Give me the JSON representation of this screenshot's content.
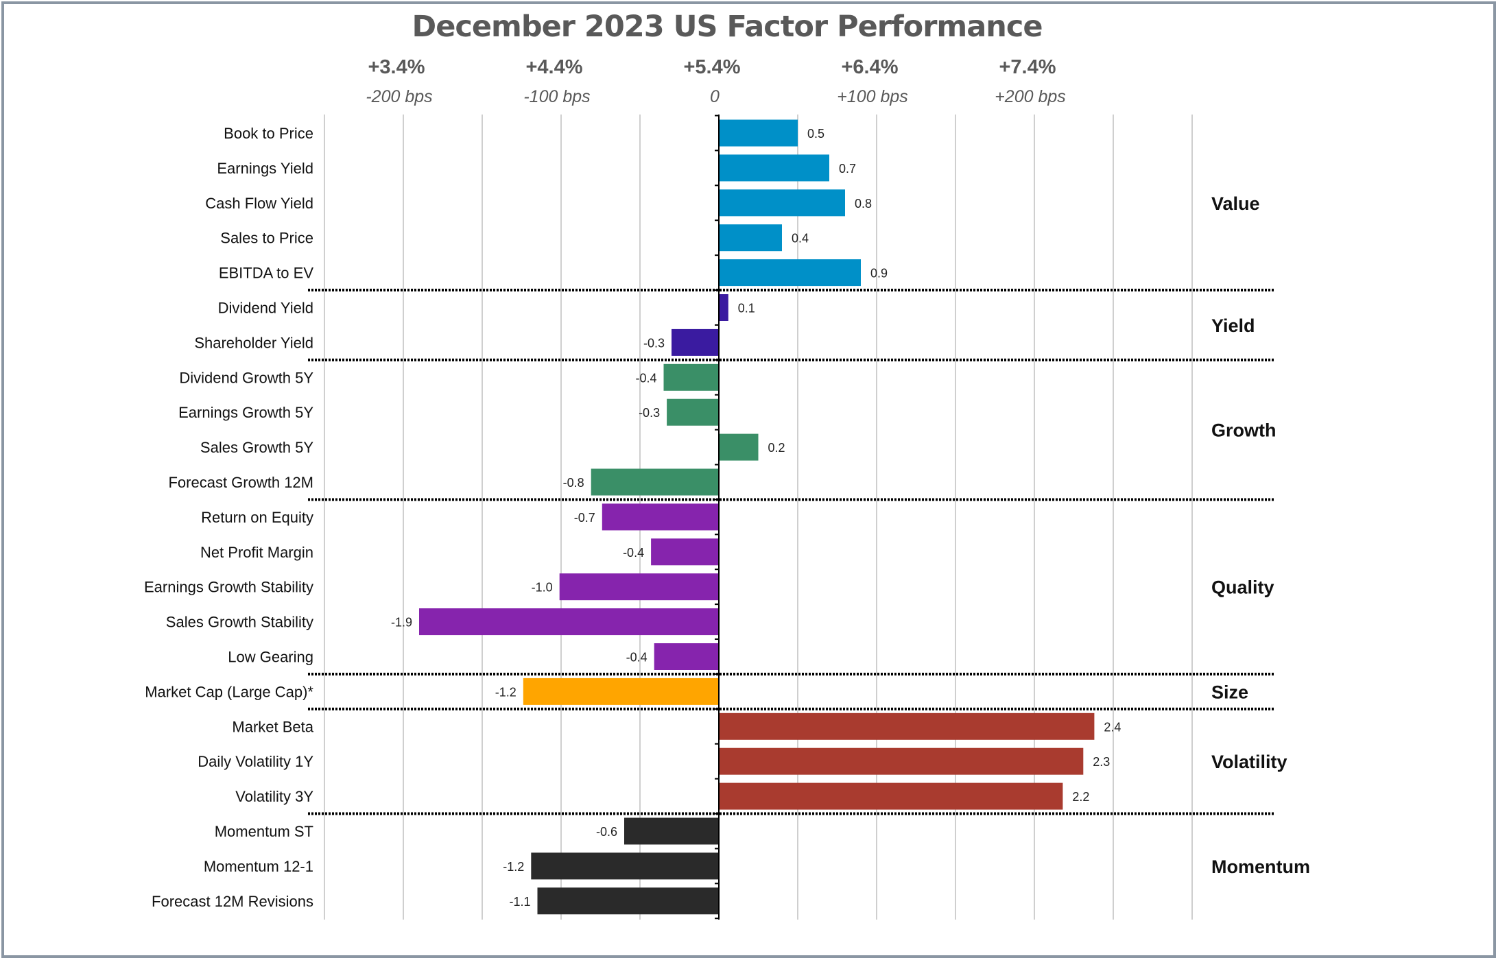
{
  "chart_data": {
    "type": "bar",
    "orientation": "horizontal",
    "title": "December 2023 US Factor Performance",
    "top_axis": [
      {
        "value": -2,
        "pct": "+3.4%",
        "bps": "-200 bps"
      },
      {
        "value": -1,
        "pct": "+4.4%",
        "bps": "-100 bps"
      },
      {
        "value": 0,
        "pct": "+5.4%",
        "bps": "0"
      },
      {
        "value": 1,
        "pct": "+6.4%",
        "bps": "+100 bps"
      },
      {
        "value": 2,
        "pct": "+7.4%",
        "bps": "+200 bps"
      }
    ],
    "xlim": [
      -2.5,
      3.0
    ],
    "grid_step": 0.5,
    "grid": true,
    "groups": [
      {
        "name": "Value",
        "color": "#0090c8",
        "items": [
          {
            "label": "Book to Price",
            "value": 0.5,
            "text": "0.5"
          },
          {
            "label": "Earnings Yield",
            "value": 0.7,
            "text": "0.7"
          },
          {
            "label": "Cash Flow Yield",
            "value": 0.8,
            "text": "0.8"
          },
          {
            "label": "Sales to Price",
            "value": 0.4,
            "text": "0.4"
          },
          {
            "label": "EBITDA to EV",
            "value": 0.9,
            "text": "0.9"
          }
        ]
      },
      {
        "name": "Yield",
        "color": "#3a1ba0",
        "items": [
          {
            "label": "Dividend Yield",
            "value": 0.06,
            "text": "0.1"
          },
          {
            "label": "Shareholder Yield",
            "value": -0.3,
            "text": "-0.3"
          }
        ]
      },
      {
        "name": "Growth",
        "color": "#3a8f67",
        "items": [
          {
            "label": "Dividend Growth 5Y",
            "value": -0.35,
            "text": "-0.4"
          },
          {
            "label": "Earnings Growth 5Y",
            "value": -0.33,
            "text": "-0.3"
          },
          {
            "label": "Sales Growth 5Y",
            "value": 0.25,
            "text": "0.2"
          },
          {
            "label": "Forecast Growth 12M",
            "value": -0.81,
            "text": "-0.8"
          }
        ]
      },
      {
        "name": "Quality",
        "color": "#8624ad",
        "items": [
          {
            "label": "Return on Equity",
            "value": -0.74,
            "text": "-0.7"
          },
          {
            "label": "Net Profit Margin",
            "value": -0.43,
            "text": "-0.4"
          },
          {
            "label": "Earnings Growth Stability",
            "value": -1.01,
            "text": "-1.0"
          },
          {
            "label": "Sales Growth Stability",
            "value": -1.9,
            "text": "-1.9"
          },
          {
            "label": "Low Gearing",
            "value": -0.41,
            "text": "-0.4"
          }
        ]
      },
      {
        "name": "Size",
        "color": "#ffa500",
        "items": [
          {
            "label": "Market Cap (Large Cap)*",
            "value": -1.24,
            "text": "-1.2"
          }
        ]
      },
      {
        "name": "Volatility",
        "color": "#a93b2f",
        "items": [
          {
            "label": "Market Beta",
            "value": 2.38,
            "text": "2.4"
          },
          {
            "label": "Daily Volatility 1Y",
            "value": 2.31,
            "text": "2.3"
          },
          {
            "label": "Volatility 3Y",
            "value": 2.18,
            "text": "2.2"
          }
        ]
      },
      {
        "name": "Momentum",
        "color": "#2a2a2a",
        "items": [
          {
            "label": "Momentum ST",
            "value": -0.6,
            "text": "-0.6"
          },
          {
            "label": "Momentum 12-1",
            "value": -1.19,
            "text": "-1.2"
          },
          {
            "label": "Forecast 12M Revisions",
            "value": -1.15,
            "text": "-1.1"
          }
        ]
      }
    ]
  }
}
